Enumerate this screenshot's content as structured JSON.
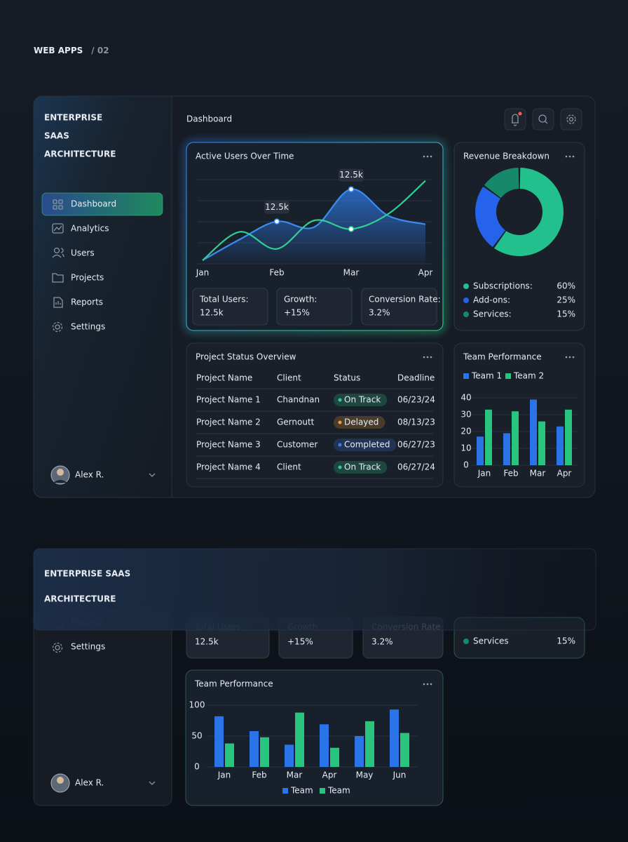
{
  "header": {
    "title": "WEB APPS",
    "suffix": "/ 02"
  },
  "sidebar": {
    "brand": [
      "ENTERPRISE",
      "SAAS",
      "ARCHITECTURE"
    ],
    "nav": [
      "Dashboard",
      "Analytics",
      "Users",
      "Projects",
      "Reports",
      "Settings"
    ],
    "active": 0,
    "user": "Alex R."
  },
  "main": {
    "title": "Dashboard"
  },
  "active_users": {
    "type": "line",
    "title": "Active Users Over Time",
    "x": [
      0,
      0.5,
      1,
      1.5,
      2,
      2.5,
      3
    ],
    "xlim": [
      0,
      3
    ],
    "xticks": [
      {
        "value": 0,
        "label": "Jan"
      },
      {
        "value": 1,
        "label": "Feb"
      },
      {
        "value": 2,
        "label": "Mar"
      },
      {
        "value": 3,
        "label": "Apr"
      }
    ],
    "ylim": [
      0,
      100
    ],
    "series": [
      {
        "color": "#3b8cf0",
        "values": [
          3,
          25,
          44,
          38,
          78,
          50,
          41
        ],
        "markers": [
          1,
          2
        ],
        "annotations": [
          {
            "x": 1,
            "text": "12.5k"
          },
          {
            "x": 2,
            "text": "12.5k"
          }
        ]
      },
      {
        "color": "#2fd08f",
        "values": [
          3,
          33,
          15,
          45,
          36,
          52,
          87
        ],
        "markers": [
          2
        ]
      }
    ]
  },
  "stats": [
    {
      "label": "Total Users:",
      "value": "12.5k",
      "color": "#ffffff"
    },
    {
      "label": "Growth:",
      "value": "+15%",
      "color": "#34d98c"
    },
    {
      "label": "Conversion Rate:",
      "value": "3.2%",
      "color": "#ffffff"
    }
  ],
  "revenue": {
    "type": "pie",
    "title": "Revenue Breakdown",
    "categories": [
      "Subscriptions:",
      "Add-ons:",
      "Services:"
    ],
    "values": [
      60,
      25,
      15
    ],
    "value_labels": [
      "60%",
      "25%",
      "15%"
    ],
    "colors": [
      "#22c08c",
      "#2563eb",
      "#15896a"
    ]
  },
  "projects": {
    "title": "Project Status Overview",
    "columns": [
      "Project Name",
      "Client",
      "Status",
      "Deadline"
    ],
    "rows": [
      {
        "name": "Project Name 1",
        "client": "Chandnan",
        "status": "On Track",
        "status_color": "#2fd08f",
        "deadline": "06/23/24"
      },
      {
        "name": "Project Name 2",
        "client": "Gernoutt",
        "status": "Delayed",
        "status_color": "#f0a030",
        "deadline": "08/13/23"
      },
      {
        "name": "Project Name 3",
        "client": "Customer",
        "status": "Completed",
        "status_color": "#3b7cf5",
        "deadline": "06/27/23"
      },
      {
        "name": "Project Name 4",
        "client": "Client",
        "status": "On Track",
        "status_color": "#2fd08f",
        "deadline": "06/27/24"
      }
    ]
  },
  "team": {
    "type": "bar",
    "title": "Team Performance",
    "categories": [
      "Jan",
      "Feb",
      "Mar",
      "Apr"
    ],
    "series": [
      {
        "name": "Team 1",
        "color": "#2a74e8",
        "values": [
          17,
          19,
          39,
          23
        ]
      },
      {
        "name": "Team 2",
        "color": "#28c57f",
        "values": [
          33,
          32,
          26,
          33
        ]
      }
    ],
    "ylim": [
      0,
      40
    ],
    "yticks": [
      0,
      10,
      20,
      30,
      40
    ],
    "grid": true
  },
  "overlay": {
    "banner": [
      "ENTERPRISE SAAS",
      "ARCHITECTURE"
    ],
    "sidebar": {
      "nav": [
        "Reports",
        "Settings"
      ],
      "user": "Alex R."
    },
    "stats": [
      {
        "label": "Total Users",
        "value": "12.5k",
        "color": "#ffffff"
      },
      {
        "label": "Growth",
        "value": "+15%",
        "color": "#34d98c"
      },
      {
        "label": "Conversion Rate",
        "value": "3.2%",
        "color": "#ffffff"
      }
    ],
    "services": {
      "label": "Services",
      "value": "15%",
      "color": "#15896a"
    },
    "team": {
      "type": "bar",
      "title": "Team Performance",
      "categories": [
        "Jan",
        "Feb",
        "Mar",
        "Apr",
        "May",
        "Jun"
      ],
      "series": [
        {
          "name": "Team",
          "color": "#2a74e8",
          "values": [
            82,
            58,
            36,
            69,
            50,
            93
          ]
        },
        {
          "name": "Team",
          "color": "#28c57f",
          "values": [
            38,
            48,
            88,
            31,
            74,
            55
          ]
        }
      ],
      "ylim": [
        0,
        100
      ],
      "yticks": [
        0,
        50,
        100
      ],
      "grid": true
    }
  }
}
